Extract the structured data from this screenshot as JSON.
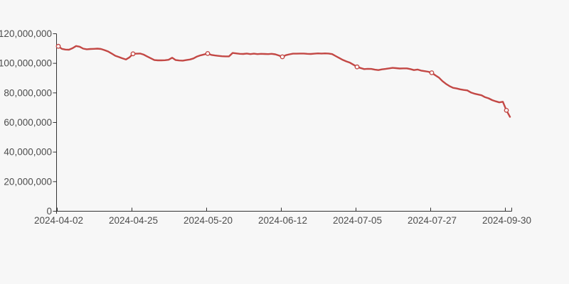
{
  "page": {
    "background_color": "#f7f7f7",
    "axis_color": "#333333",
    "label_color": "#4d4d4d"
  },
  "chart_data": {
    "type": "line",
    "title": "",
    "xlabel": "",
    "ylabel": "",
    "grid": "off",
    "legend": "none",
    "x_tick_labels": [
      "2024-04-02",
      "2024-04-25",
      "2024-05-20",
      "2024-06-12",
      "2024-07-05",
      "2024-07-27",
      "2024-09-30"
    ],
    "y_tick_labels": [
      "0",
      "20,000,000",
      "40,000,000",
      "60,000,000",
      "80,000,000",
      "100,000,000",
      "120,000,000"
    ],
    "y_tick_values_millions": [
      0,
      20,
      40,
      60,
      80,
      100,
      120
    ],
    "ylim_millions": [
      0,
      120
    ],
    "values_unit": "millions (multiply by 1,000,000 for axis units)",
    "series": [
      {
        "name": "value",
        "color": "#c34845",
        "marker_fill": "#fdfdfd",
        "marker_indices": [
          0,
          21,
          42,
          63,
          84,
          105,
          126
        ],
        "values_millions": [
          111.5,
          109.8,
          109.3,
          109.2,
          110.2,
          111.7,
          111.2,
          109.9,
          109.5,
          109.7,
          109.8,
          109.9,
          109.7,
          108.9,
          108.0,
          106.6,
          105.1,
          104.3,
          103.4,
          102.6,
          104.0,
          106.4,
          106.5,
          106.6,
          105.9,
          104.6,
          103.4,
          102.2,
          102.0,
          102.0,
          102.1,
          102.4,
          103.8,
          102.2,
          101.9,
          101.8,
          102.2,
          102.6,
          103.3,
          104.6,
          105.4,
          106.0,
          106.6,
          105.7,
          105.3,
          105.0,
          104.8,
          104.7,
          104.7,
          107.0,
          106.7,
          106.4,
          106.3,
          106.6,
          106.2,
          106.5,
          106.2,
          106.4,
          106.3,
          106.2,
          106.4,
          106.1,
          105.3,
          104.4,
          105.5,
          106.1,
          106.5,
          106.5,
          106.6,
          106.6,
          106.4,
          106.3,
          106.5,
          106.7,
          106.6,
          106.7,
          106.6,
          106.2,
          104.9,
          103.6,
          102.3,
          101.3,
          100.4,
          99.0,
          97.6,
          96.8,
          96.1,
          96.3,
          96.2,
          95.7,
          95.4,
          95.9,
          96.2,
          96.6,
          96.9,
          96.7,
          96.5,
          96.6,
          96.6,
          96.1,
          95.4,
          95.8,
          95.1,
          94.7,
          94.3,
          93.6,
          91.9,
          90.4,
          88.0,
          86.1,
          84.6,
          83.4,
          83.0,
          82.4,
          82.0,
          81.7,
          80.3,
          79.5,
          78.9,
          78.4,
          77.1,
          76.3,
          75.1,
          74.3,
          73.6,
          74.0,
          68.2,
          63.8
        ]
      }
    ]
  }
}
